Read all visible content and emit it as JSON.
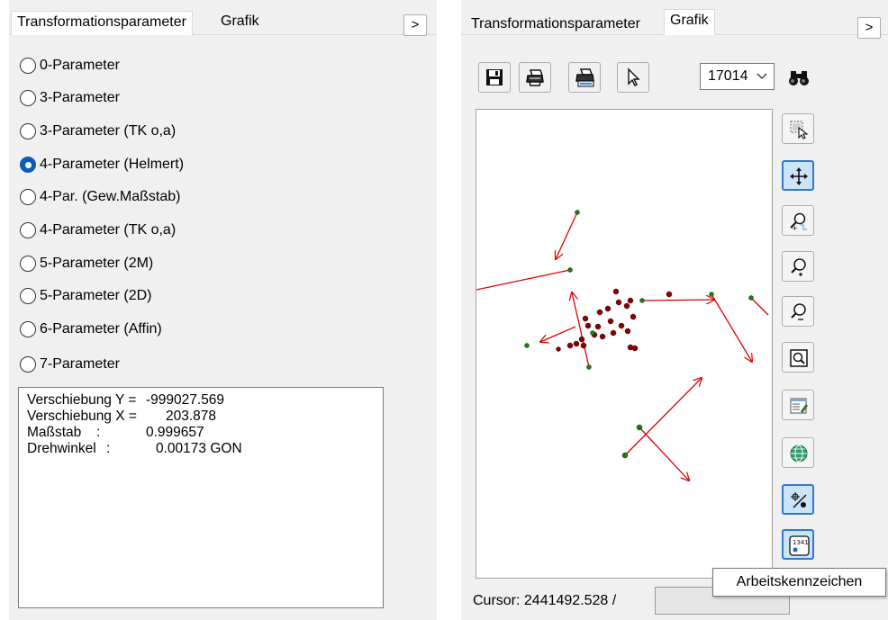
{
  "left_panel": {
    "tabs": [
      {
        "label": "Transformationsparameter",
        "active": true
      },
      {
        "label": "Grafik",
        "active": false
      }
    ],
    "expand_label": ">",
    "options": [
      {
        "label": "0-Parameter",
        "checked": false
      },
      {
        "label": "3-Parameter",
        "checked": false
      },
      {
        "label": "3-Parameter (TK o,a)",
        "checked": false
      },
      {
        "label": "4-Parameter (Helmert)",
        "checked": true
      },
      {
        "label": "4-Par. (Gew.Maßstab)",
        "checked": false
      },
      {
        "label": "4-Parameter (TK o,a)",
        "checked": false
      },
      {
        "label": "5-Parameter (2M)",
        "checked": false
      },
      {
        "label": "5-Parameter (2D)",
        "checked": false
      },
      {
        "label": "6-Parameter (Affin)",
        "checked": false
      },
      {
        "label": "7-Parameter",
        "checked": false
      }
    ],
    "results": [
      {
        "label": "Verschiebung Y =",
        "value": "-999027.569"
      },
      {
        "label": "Verschiebung X =",
        "value": "203.878"
      },
      {
        "label": "Maßstab",
        "sep": ":",
        "value": "0.999657"
      },
      {
        "label": "Drehwinkel",
        "sep": ":",
        "value": "0.00173 GON"
      }
    ]
  },
  "right_panel": {
    "tabs": [
      {
        "label": "Transformationsparameter",
        "active": false
      },
      {
        "label": "Grafik",
        "active": true
      }
    ],
    "expand_label": ">",
    "toolbar": {
      "save_icon": "save-icon",
      "print_icon": "print-icon",
      "print_preview_icon": "print-preview-icon",
      "select_icon": "pointer-icon",
      "layer_value": "17014",
      "find_icon": "binoculars-icon"
    },
    "side_tools": [
      {
        "name": "zoom-window-button",
        "icon": "zoom-window-icon",
        "active": false
      },
      {
        "name": "pan-button",
        "icon": "pan-icon",
        "active": true
      },
      {
        "name": "zoom-dynamic-button",
        "icon": "zoom-dynamic-icon",
        "active": false
      },
      {
        "name": "zoom-in-button",
        "icon": "zoom-in-icon",
        "active": false
      },
      {
        "name": "zoom-out-button",
        "icon": "zoom-out-icon",
        "active": false
      },
      {
        "name": "zoom-extent-button",
        "icon": "zoom-extent-icon",
        "active": false
      },
      {
        "name": "properties-button",
        "icon": "properties-icon",
        "active": false
      },
      {
        "name": "coordinate-system-button",
        "icon": "globe-icon",
        "active": false
      },
      {
        "name": "residuals-button",
        "icon": "residual-vector-icon",
        "active": true
      },
      {
        "name": "point-number-button",
        "icon": "point-number-icon",
        "active": true
      }
    ],
    "point_number_badge": "1341",
    "status": {
      "cursor_text": "Cursor: 2441492.528 /",
      "field_value": ""
    },
    "tooltip": "Arbeitskennzeichen"
  },
  "colors": {
    "radio_checked": "#0a5fb5",
    "vector": "#e00000",
    "point_dark": "#8b0000",
    "point_green": "#1a7a1a",
    "active_tool_border": "#2f7ad0",
    "active_tool_fill": "#cce4f7"
  }
}
